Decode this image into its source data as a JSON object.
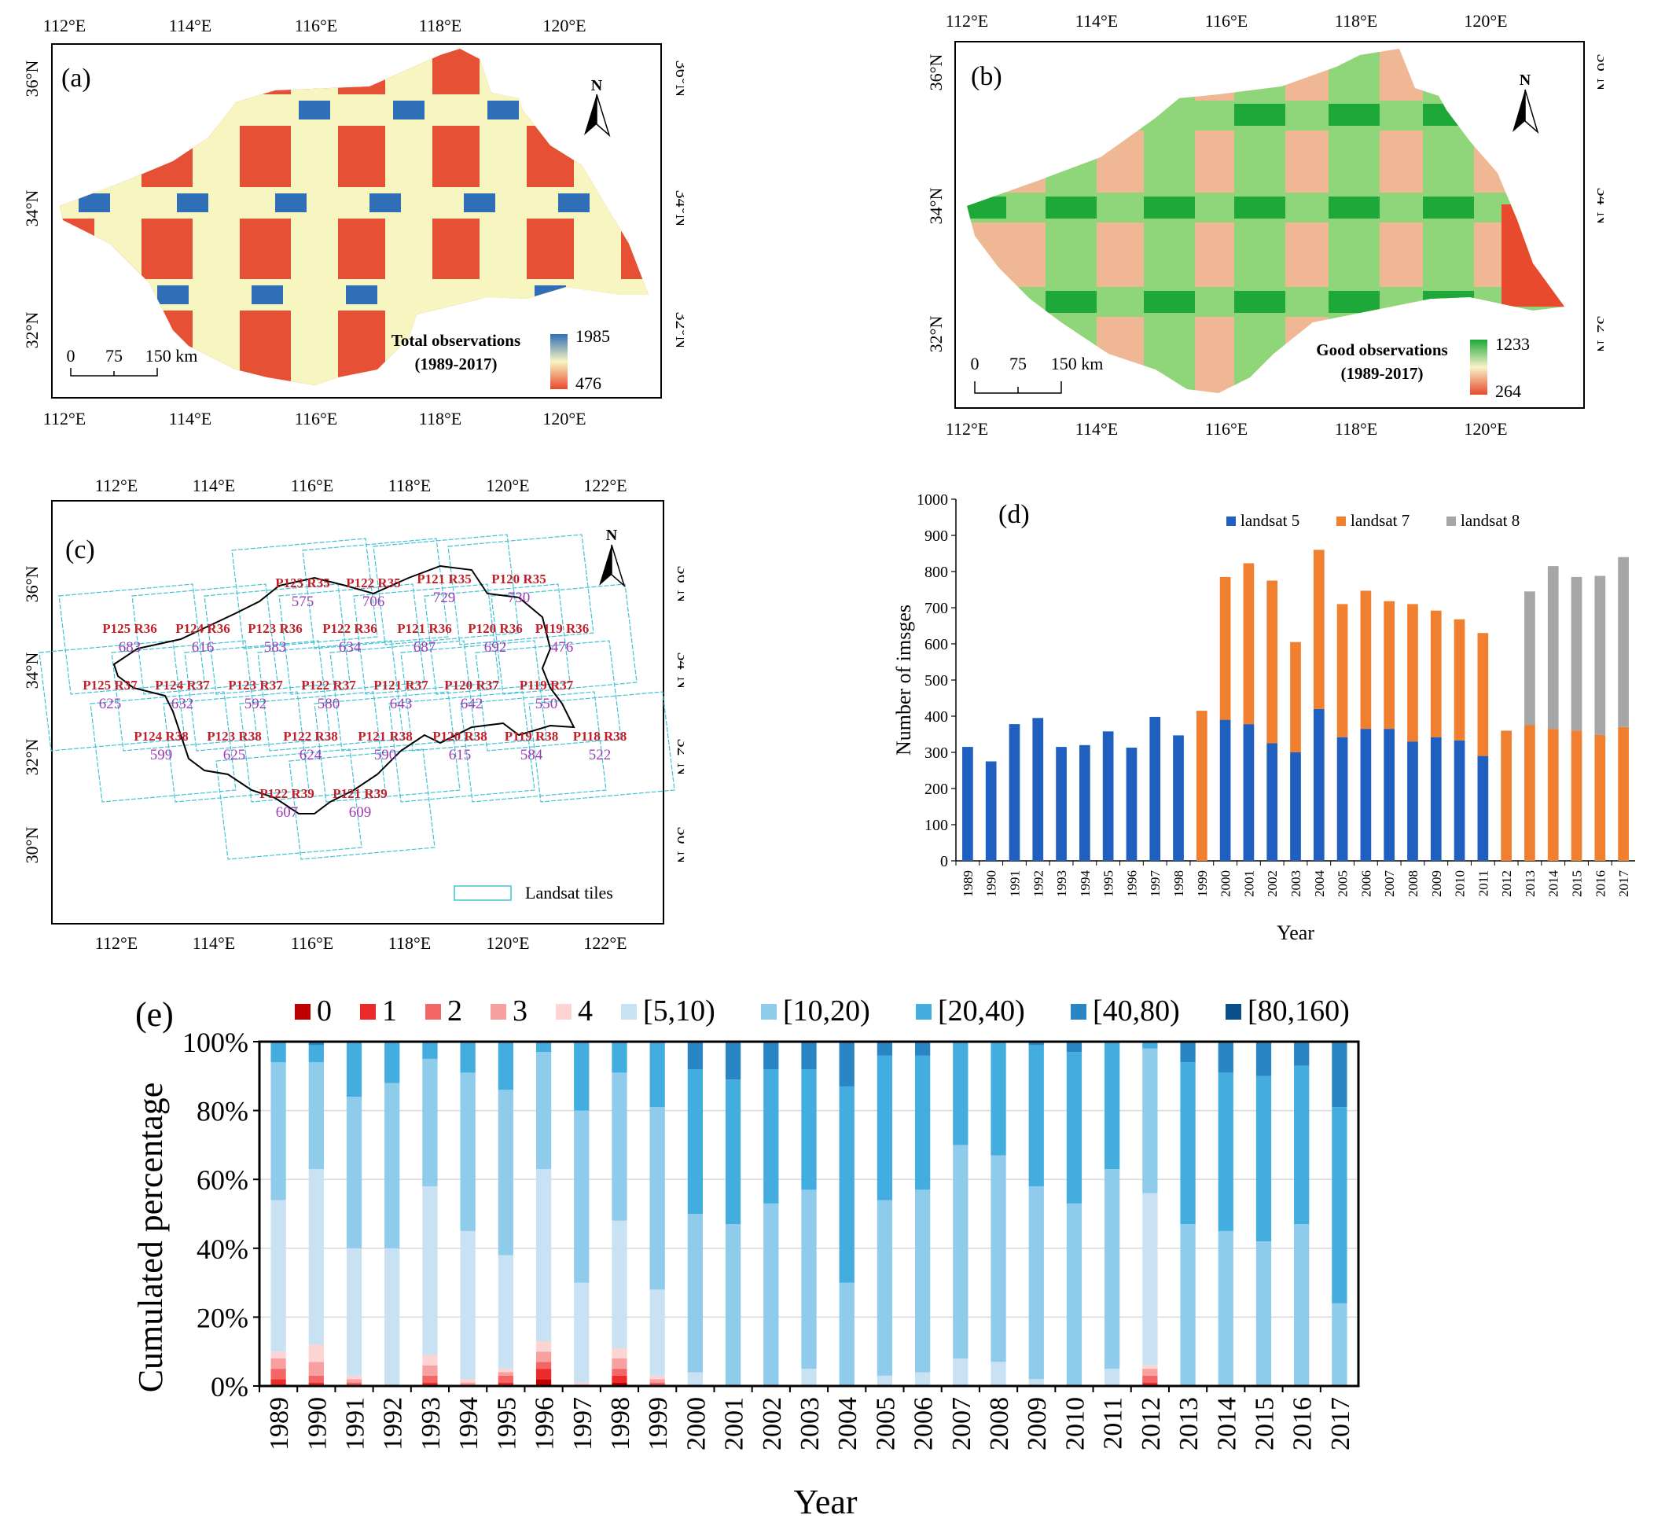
{
  "colors": {
    "landsat5": "#1f5fbf",
    "landsat7": "#f08030",
    "landsat8": "#a6a6a6",
    "obs_high": "#2f6fb7",
    "obs_mid": "#f7f5c0",
    "obs_low": "#e84a2e",
    "good_high": "#1ea83a",
    "good_mid": "#f7f3c8",
    "good_low": "#e84a2e",
    "tile": "#44c2d6",
    "tile_label": "#c0202a",
    "tile_count": "#9c3cb4"
  },
  "panel_a": {
    "label": "(a)",
    "lon_ticks": [
      "112°E",
      "114°E",
      "116°E",
      "118°E",
      "120°E"
    ],
    "lat_ticks": [
      "36°N",
      "34°N",
      "32°N"
    ],
    "north": "N",
    "scale": [
      "0",
      "75",
      "150 km"
    ],
    "legend_title": "Total observations",
    "legend_period": "(1989-2017)",
    "legend_max": "1985",
    "legend_min": "476"
  },
  "panel_b": {
    "label": "(b)",
    "lon_ticks": [
      "112°E",
      "114°E",
      "116°E",
      "118°E",
      "120°E"
    ],
    "lat_ticks": [
      "36°N",
      "34°N",
      "32°N"
    ],
    "north": "N",
    "scale": [
      "0",
      "75",
      "150 km"
    ],
    "legend_title": "Good observations",
    "legend_period": "(1989-2017)",
    "legend_max": "1233",
    "legend_min": "264"
  },
  "panel_c": {
    "label": "(c)",
    "lon_ticks": [
      "112°E",
      "114°E",
      "116°E",
      "118°E",
      "120°E",
      "122°E"
    ],
    "lat_ticks": [
      "36°N",
      "34°N",
      "32°N",
      "30°N"
    ],
    "north": "N",
    "legend": "Landsat tiles",
    "tiles": [
      {
        "name": "P123 R35",
        "count": "575"
      },
      {
        "name": "P122 R35",
        "count": "706"
      },
      {
        "name": "P121 R35",
        "count": "729"
      },
      {
        "name": "P120 R35",
        "count": "730"
      },
      {
        "name": "P125 R36",
        "count": "683"
      },
      {
        "name": "P124 R36",
        "count": "616"
      },
      {
        "name": "P123 R36",
        "count": "583"
      },
      {
        "name": "P122 R36",
        "count": "634"
      },
      {
        "name": "P121 R36",
        "count": "687"
      },
      {
        "name": "P120 R36",
        "count": "692"
      },
      {
        "name": "P119 R36",
        "count": "476"
      },
      {
        "name": "P125 R37",
        "count": "625"
      },
      {
        "name": "P124 R37",
        "count": "632"
      },
      {
        "name": "P123 R37",
        "count": "592"
      },
      {
        "name": "P122 R37",
        "count": "580"
      },
      {
        "name": "P121 R37",
        "count": "643"
      },
      {
        "name": "P120 R37",
        "count": "642"
      },
      {
        "name": "P119 R37",
        "count": "550"
      },
      {
        "name": "P124 R38",
        "count": "599"
      },
      {
        "name": "P123 R38",
        "count": "625"
      },
      {
        "name": "P122 R38",
        "count": "624"
      },
      {
        "name": "P121 R38",
        "count": "590"
      },
      {
        "name": "P120 R38",
        "count": "615"
      },
      {
        "name": "P119 R38",
        "count": "584"
      },
      {
        "name": "P118 R38",
        "count": "522"
      },
      {
        "name": "P122 R39",
        "count": "607"
      },
      {
        "name": "P121 R39",
        "count": "609"
      }
    ]
  },
  "chart_data": [
    {
      "type": "bar",
      "stacked": true,
      "label": "(d)",
      "title": "",
      "xlabel": "Year",
      "ylabel": "Number of imsges",
      "ylim": [
        0,
        1000
      ],
      "yticks": [
        "0",
        "100",
        "200",
        "300",
        "400",
        "500",
        "600",
        "700",
        "800",
        "900",
        "1000"
      ],
      "legend": "top",
      "categories": [
        "1989",
        "1990",
        "1991",
        "1992",
        "1993",
        "1994",
        "1995",
        "1996",
        "1997",
        "1998",
        "1999",
        "2000",
        "2001",
        "2002",
        "2003",
        "2004",
        "2005",
        "2006",
        "2007",
        "2008",
        "2009",
        "2010",
        "2011",
        "2012",
        "2013",
        "2014",
        "2015",
        "2016",
        "2017"
      ],
      "series": [
        {
          "name": "landsat 5",
          "values": [
            315,
            275,
            378,
            395,
            315,
            320,
            358,
            313,
            398,
            347,
            0,
            390,
            378,
            325,
            300,
            420,
            342,
            365,
            365,
            330,
            342,
            333,
            290,
            0,
            0,
            0,
            0,
            0,
            0
          ]
        },
        {
          "name": "landsat 7",
          "values": [
            0,
            0,
            0,
            0,
            0,
            0,
            0,
            0,
            0,
            0,
            415,
            395,
            445,
            450,
            305,
            440,
            368,
            382,
            353,
            380,
            350,
            335,
            340,
            360,
            375,
            365,
            360,
            348,
            370
          ]
        },
        {
          "name": "landsat 8",
          "values": [
            0,
            0,
            0,
            0,
            0,
            0,
            0,
            0,
            0,
            0,
            0,
            0,
            0,
            0,
            0,
            0,
            0,
            0,
            0,
            0,
            0,
            0,
            0,
            0,
            370,
            450,
            425,
            440,
            470
          ]
        }
      ]
    },
    {
      "type": "bar",
      "stacked": true,
      "label": "(e)",
      "title": "",
      "xlabel": "Year",
      "ylabel": "Cumulated percentage",
      "ylim": [
        0,
        100
      ],
      "yticks": [
        "0%",
        "20%",
        "40%",
        "60%",
        "80%",
        "100%"
      ],
      "legend": "top",
      "categories": [
        "1989",
        "1990",
        "1991",
        "1992",
        "1993",
        "1994",
        "1995",
        "1996",
        "1997",
        "1998",
        "1999",
        "2000",
        "2001",
        "2002",
        "2003",
        "2004",
        "2005",
        "2006",
        "2007",
        "2008",
        "2009",
        "2010",
        "2011",
        "2012",
        "2013",
        "2014",
        "2015",
        "2016",
        "2017"
      ],
      "series": [
        {
          "name": "0",
          "color": "#c00000",
          "values": [
            0,
            0,
            0,
            0,
            0,
            0,
            0,
            2,
            0,
            1,
            0,
            0,
            0,
            0,
            0,
            0,
            0,
            0,
            0,
            0,
            0,
            0,
            0,
            0,
            0,
            0,
            0,
            0,
            0
          ]
        },
        {
          "name": "1",
          "color": "#ec2a2a",
          "values": [
            2,
            1,
            0,
            0,
            1,
            0,
            1,
            3,
            0,
            2,
            0,
            0,
            0,
            0,
            0,
            0,
            0,
            0,
            0,
            0,
            0,
            0,
            0,
            1,
            0,
            0,
            0,
            0,
            0
          ]
        },
        {
          "name": "2",
          "color": "#f46666",
          "values": [
            3,
            2,
            1,
            0,
            2,
            0,
            2,
            2,
            0,
            2,
            1,
            0,
            0,
            0,
            0,
            0,
            0,
            0,
            0,
            0,
            0,
            0,
            0,
            2,
            0,
            0,
            0,
            0,
            0
          ]
        },
        {
          "name": "3",
          "color": "#f8a0a0",
          "values": [
            3,
            4,
            1,
            0,
            3,
            1,
            1,
            3,
            0,
            3,
            1,
            0,
            0,
            0,
            0,
            0,
            0,
            0,
            0,
            0,
            0,
            0,
            0,
            2,
            0,
            0,
            0,
            0,
            0
          ]
        },
        {
          "name": "4",
          "color": "#fcd4d4",
          "values": [
            2,
            5,
            1,
            0,
            3,
            1,
            1,
            3,
            1,
            3,
            1,
            0,
            0,
            0,
            0,
            0,
            0,
            0,
            0,
            0,
            0,
            0,
            0,
            1,
            0,
            0,
            0,
            0,
            0
          ]
        },
        {
          "name": "[5,10)",
          "color": "#c9e2f3",
          "values": [
            44,
            51,
            37,
            40,
            49,
            43,
            33,
            50,
            29,
            37,
            25,
            4,
            0,
            0,
            5,
            0,
            3,
            4,
            8,
            7,
            2,
            0,
            5,
            50,
            0,
            0,
            0,
            0,
            0
          ]
        },
        {
          "name": "[10,20)",
          "color": "#8fcbeb",
          "values": [
            40,
            31,
            44,
            48,
            37,
            46,
            48,
            34,
            50,
            43,
            53,
            46,
            47,
            53,
            52,
            30,
            51,
            53,
            62,
            60,
            56,
            53,
            58,
            42,
            47,
            45,
            42,
            47,
            24
          ]
        },
        {
          "name": "[20,40)",
          "color": "#43ade0",
          "values": [
            6,
            5,
            16,
            12,
            5,
            9,
            14,
            3,
            20,
            9,
            19,
            42,
            42,
            39,
            35,
            57,
            42,
            39,
            30,
            33,
            41,
            44,
            37,
            2,
            47,
            46,
            48,
            46,
            57
          ]
        },
        {
          "name": "[40,80)",
          "color": "#2a85c4",
          "values": [
            0,
            1,
            0,
            0,
            0,
            0,
            0,
            0,
            0,
            0,
            0,
            8,
            11,
            8,
            8,
            13,
            4,
            4,
            0,
            0,
            1,
            3,
            0,
            0,
            6,
            9,
            10,
            7,
            19
          ]
        },
        {
          "name": "[80,160)",
          "color": "#0a4f8a",
          "values": [
            0,
            0,
            0,
            0,
            0,
            0,
            0,
            0,
            0,
            0,
            0,
            0,
            0,
            0,
            0,
            0,
            0,
            0,
            0,
            0,
            0,
            0,
            0,
            0,
            0,
            0,
            0,
            0,
            0
          ]
        }
      ]
    }
  ]
}
